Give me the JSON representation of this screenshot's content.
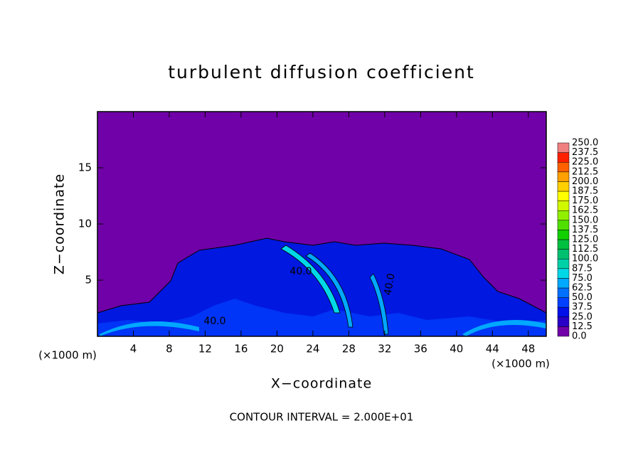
{
  "chart_data": {
    "type": "contour",
    "title": "turbulent diffusion coefficient",
    "xlabel": "X−coordinate",
    "ylabel": "Z−coordinate",
    "x_unit_label": "(×1000 m)",
    "y_unit_label": "(×1000 m)",
    "footnote": "CONTOUR INTERVAL = 2.000E+01",
    "contour_labels": [
      "40.0",
      "40.0",
      "40.0"
    ],
    "xlim": [
      0,
      50
    ],
    "xticks": [
      4,
      8,
      12,
      16,
      20,
      24,
      28,
      32,
      36,
      40,
      44,
      48
    ],
    "ylim": [
      0,
      20
    ],
    "yticks": [
      5,
      10,
      15
    ],
    "colorbar": {
      "levels": [
        {
          "value": 0,
          "label": "0.0"
        },
        {
          "value": 12.5,
          "label": "12.5"
        },
        {
          "value": 25,
          "label": "25.0"
        },
        {
          "value": 37.5,
          "label": "37.5"
        },
        {
          "value": 50,
          "label": "50.0"
        },
        {
          "value": 62.5,
          "label": "62.5"
        },
        {
          "value": 75,
          "label": "75.0"
        },
        {
          "value": 87.5,
          "label": "87.5"
        },
        {
          "value": 100,
          "label": "100.0"
        },
        {
          "value": 112.5,
          "label": "112.5"
        },
        {
          "value": 125,
          "label": "125.0"
        },
        {
          "value": 137.5,
          "label": "137.5"
        },
        {
          "value": 150,
          "label": "150.0"
        },
        {
          "value": 162.5,
          "label": "162.5"
        },
        {
          "value": 175,
          "label": "175.0"
        },
        {
          "value": 187.5,
          "label": "187.5"
        },
        {
          "value": 200,
          "label": "200.0"
        },
        {
          "value": 212.5,
          "label": "212.5"
        },
        {
          "value": 225,
          "label": "225.0"
        },
        {
          "value": 237.5,
          "label": "237.5"
        },
        {
          "value": 250,
          "label": "250.0"
        }
      ],
      "colors": [
        "#7000a8",
        "#2800c8",
        "#0010e8",
        "#0040ff",
        "#0070ff",
        "#00a8ff",
        "#00d8e8",
        "#00d0a8",
        "#00c070",
        "#00c040",
        "#10d000",
        "#50e000",
        "#90f000",
        "#d0f800",
        "#ffff00",
        "#ffd000",
        "#ffa000",
        "#ff6000",
        "#ff2000",
        "#f08080"
      ]
    }
  }
}
